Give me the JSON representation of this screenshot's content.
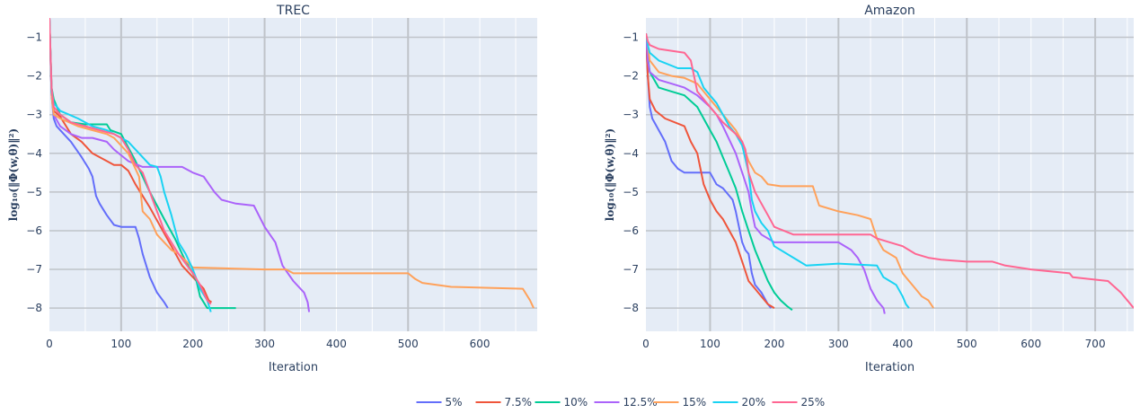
{
  "colors": {
    "plot_bg": "#e5ecf6",
    "grid": "#ffffff",
    "series": {
      "5%": "#636efa",
      "7.5%": "#ef553b",
      "10%": "#00cc96",
      "12.5%": "#ab63fa",
      "15%": "#ffa15a",
      "20%": "#19d3f3",
      "25%": "#ff6692"
    }
  },
  "legend": {
    "placement": "bottom-center",
    "entries": [
      "5%",
      "7.5%",
      "10%",
      "12.5%",
      "15%",
      "20%",
      "25%"
    ]
  },
  "chart_data": [
    {
      "type": "line",
      "title": "TREC",
      "xlabel": "Iteration",
      "ylabel": "log₁₀(‖Φ(w,θ)‖²)",
      "xlim": [
        0,
        680
      ],
      "ylim": [
        -8.6,
        -0.5
      ],
      "xticks": [
        0,
        100,
        200,
        300,
        400,
        500,
        600
      ],
      "yticks": [
        -1,
        -2,
        -3,
        -4,
        -5,
        -6,
        -7,
        -8
      ],
      "grid": true,
      "series": [
        {
          "name": "5%",
          "x": [
            0,
            3,
            6,
            10,
            20,
            30,
            45,
            55,
            60,
            65,
            70,
            80,
            90,
            100,
            120,
            125,
            130,
            140,
            150,
            160,
            165
          ],
          "y": [
            -0.5,
            -2.5,
            -3.1,
            -3.3,
            -3.5,
            -3.7,
            -4.1,
            -4.4,
            -4.6,
            -5.1,
            -5.3,
            -5.6,
            -5.85,
            -5.9,
            -5.9,
            -6.2,
            -6.6,
            -7.2,
            -7.6,
            -7.85,
            -8.0
          ]
        },
        {
          "name": "7.5%",
          "x": [
            0,
            3,
            6,
            15,
            30,
            45,
            60,
            80,
            90,
            100,
            110,
            120,
            130,
            140,
            155,
            170,
            185,
            200,
            215,
            222,
            226
          ],
          "y": [
            -0.5,
            -2.3,
            -2.9,
            -3.05,
            -3.5,
            -3.7,
            -4.0,
            -4.2,
            -4.3,
            -4.3,
            -4.45,
            -4.8,
            -5.1,
            -5.4,
            -5.9,
            -6.4,
            -6.9,
            -7.2,
            -7.5,
            -7.8,
            -7.85
          ]
        },
        {
          "name": "10%",
          "x": [
            0,
            3,
            6,
            15,
            30,
            50,
            60,
            80,
            85,
            100,
            120,
            140,
            160,
            175,
            190,
            200,
            205,
            210,
            220,
            260
          ],
          "y": [
            -0.5,
            -2.3,
            -2.6,
            -3.0,
            -3.2,
            -3.25,
            -3.25,
            -3.25,
            -3.4,
            -3.5,
            -4.2,
            -5.0,
            -5.7,
            -6.2,
            -6.8,
            -7.1,
            -7.3,
            -7.7,
            -8.0,
            -8.0
          ]
        },
        {
          "name": "12.5%",
          "x": [
            0,
            3,
            6,
            15,
            30,
            45,
            60,
            80,
            90,
            110,
            130,
            150,
            185,
            200,
            215,
            230,
            240,
            260,
            285,
            300,
            315,
            325,
            340,
            355,
            360,
            362
          ],
          "y": [
            -0.5,
            -2.5,
            -3.0,
            -3.3,
            -3.5,
            -3.6,
            -3.6,
            -3.7,
            -3.9,
            -4.2,
            -4.35,
            -4.35,
            -4.35,
            -4.5,
            -4.6,
            -5.0,
            -5.2,
            -5.3,
            -5.35,
            -5.9,
            -6.3,
            -6.9,
            -7.3,
            -7.6,
            -7.85,
            -8.1
          ]
        },
        {
          "name": "15%",
          "x": [
            0,
            3,
            6,
            15,
            40,
            60,
            80,
            90,
            110,
            125,
            130,
            140,
            150,
            160,
            170,
            180,
            200,
            300,
            330,
            340,
            500,
            510,
            520,
            560,
            660,
            670,
            675
          ],
          "y": [
            -0.5,
            -2.5,
            -3.0,
            -3.1,
            -3.3,
            -3.4,
            -3.5,
            -3.6,
            -4.0,
            -4.6,
            -5.5,
            -5.7,
            -6.1,
            -6.3,
            -6.5,
            -6.6,
            -6.95,
            -7.0,
            -7.0,
            -7.1,
            -7.1,
            -7.25,
            -7.35,
            -7.45,
            -7.5,
            -7.8,
            -8.0
          ]
        },
        {
          "name": "20%",
          "x": [
            0,
            3,
            6,
            15,
            40,
            60,
            80,
            90,
            110,
            125,
            140,
            150,
            155,
            160,
            170,
            180,
            190,
            200,
            210,
            220,
            225
          ],
          "y": [
            -0.5,
            -2.4,
            -2.7,
            -2.9,
            -3.1,
            -3.3,
            -3.4,
            -3.5,
            -3.7,
            -4.0,
            -4.3,
            -4.35,
            -4.6,
            -5.0,
            -5.6,
            -6.3,
            -6.6,
            -7.0,
            -7.5,
            -7.8,
            -8.1
          ]
        },
        {
          "name": "25%",
          "x": [
            0,
            3,
            6,
            15,
            30,
            50,
            70,
            90,
            100,
            110,
            120,
            130,
            140,
            160,
            180,
            200,
            210,
            220,
            225
          ],
          "y": [
            -0.5,
            -2.3,
            -2.8,
            -3.0,
            -3.2,
            -3.3,
            -3.4,
            -3.5,
            -3.6,
            -3.9,
            -4.3,
            -4.5,
            -5.0,
            -6.0,
            -6.6,
            -7.1,
            -7.4,
            -7.8,
            -7.9
          ]
        }
      ]
    },
    {
      "type": "line",
      "title": "Amazon",
      "xlabel": "Iteration",
      "ylabel": "log₁₀(‖Φ(w,θ)‖²)",
      "xlim": [
        0,
        760
      ],
      "ylim": [
        -8.6,
        -0.5
      ],
      "xticks": [
        0,
        100,
        200,
        300,
        400,
        500,
        600,
        700
      ],
      "yticks": [
        -1,
        -2,
        -3,
        -4,
        -5,
        -6,
        -7,
        -8
      ],
      "grid": true,
      "series": [
        {
          "name": "5%",
          "x": [
            0,
            3,
            6,
            10,
            20,
            30,
            40,
            50,
            60,
            70,
            100,
            110,
            120,
            135,
            140,
            145,
            150,
            155,
            160,
            165,
            170,
            180,
            190,
            195
          ],
          "y": [
            -0.9,
            -2.0,
            -2.8,
            -3.1,
            -3.4,
            -3.7,
            -4.2,
            -4.4,
            -4.5,
            -4.5,
            -4.5,
            -4.8,
            -4.9,
            -5.2,
            -5.5,
            -5.9,
            -6.3,
            -6.5,
            -6.6,
            -7.1,
            -7.4,
            -7.6,
            -7.9,
            -8.0
          ]
        },
        {
          "name": "7.5%",
          "x": [
            0,
            3,
            6,
            15,
            30,
            60,
            70,
            80,
            90,
            100,
            105,
            110,
            120,
            130,
            140,
            150,
            160,
            170,
            180,
            190,
            200
          ],
          "y": [
            -0.9,
            -2.0,
            -2.6,
            -2.9,
            -3.1,
            -3.3,
            -3.7,
            -4.0,
            -4.8,
            -5.2,
            -5.35,
            -5.5,
            -5.7,
            -6.0,
            -6.3,
            -6.8,
            -7.3,
            -7.5,
            -7.7,
            -7.9,
            -8.0
          ]
        },
        {
          "name": "10%",
          "x": [
            0,
            3,
            6,
            20,
            40,
            60,
            80,
            100,
            110,
            120,
            130,
            140,
            150,
            160,
            170,
            180,
            190,
            200,
            210,
            220,
            228
          ],
          "y": [
            -0.9,
            -1.5,
            -1.9,
            -2.3,
            -2.4,
            -2.5,
            -2.8,
            -3.4,
            -3.7,
            -4.1,
            -4.5,
            -4.9,
            -5.5,
            -6.0,
            -6.5,
            -6.9,
            -7.3,
            -7.6,
            -7.8,
            -7.95,
            -8.05
          ]
        },
        {
          "name": "12.5%",
          "x": [
            0,
            3,
            6,
            20,
            40,
            60,
            80,
            100,
            110,
            120,
            140,
            150,
            160,
            165,
            170,
            180,
            200,
            250,
            300,
            320,
            330,
            340,
            350,
            360,
            370,
            372
          ],
          "y": [
            -0.9,
            -1.6,
            -1.9,
            -2.1,
            -2.2,
            -2.3,
            -2.5,
            -2.8,
            -3.0,
            -3.3,
            -4.0,
            -4.5,
            -5.0,
            -5.5,
            -5.9,
            -6.1,
            -6.3,
            -6.3,
            -6.3,
            -6.5,
            -6.7,
            -7.0,
            -7.5,
            -7.8,
            -8.0,
            -8.15
          ]
        },
        {
          "name": "15%",
          "x": [
            0,
            3,
            6,
            20,
            40,
            60,
            80,
            100,
            120,
            140,
            150,
            160,
            170,
            180,
            190,
            210,
            260,
            270,
            300,
            330,
            350,
            360,
            370,
            390,
            400,
            410,
            420,
            430,
            440,
            448
          ],
          "y": [
            -0.9,
            -1.2,
            -1.6,
            -1.9,
            -2.0,
            -2.05,
            -2.2,
            -2.6,
            -3.0,
            -3.4,
            -3.7,
            -4.2,
            -4.5,
            -4.6,
            -4.8,
            -4.85,
            -4.85,
            -5.35,
            -5.5,
            -5.6,
            -5.7,
            -6.2,
            -6.5,
            -6.7,
            -7.1,
            -7.3,
            -7.5,
            -7.7,
            -7.8,
            -8.0
          ]
        },
        {
          "name": "20%",
          "x": [
            0,
            3,
            6,
            20,
            50,
            70,
            80,
            90,
            100,
            110,
            120,
            130,
            140,
            150,
            160,
            165,
            170,
            180,
            190,
            200,
            250,
            300,
            360,
            370,
            380,
            390,
            400,
            405,
            410
          ],
          "y": [
            -0.9,
            -1.2,
            -1.4,
            -1.6,
            -1.8,
            -1.8,
            -1.9,
            -2.3,
            -2.5,
            -2.7,
            -3.0,
            -3.3,
            -3.5,
            -3.8,
            -4.5,
            -5.2,
            -5.5,
            -5.8,
            -6.0,
            -6.4,
            -6.9,
            -6.85,
            -6.9,
            -7.2,
            -7.3,
            -7.4,
            -7.7,
            -7.9,
            -8.0
          ]
        },
        {
          "name": "25%",
          "x": [
            0,
            3,
            6,
            20,
            60,
            70,
            80,
            100,
            120,
            140,
            150,
            155,
            160,
            170,
            180,
            190,
            200,
            230,
            300,
            350,
            360,
            380,
            400,
            410,
            420,
            440,
            460,
            500,
            540,
            560,
            600,
            660,
            665,
            720,
            740,
            760
          ],
          "y": [
            -0.9,
            -1.1,
            -1.2,
            -1.3,
            -1.4,
            -1.6,
            -2.4,
            -2.8,
            -3.2,
            -3.5,
            -3.7,
            -3.9,
            -4.5,
            -5.0,
            -5.3,
            -5.6,
            -5.9,
            -6.1,
            -6.1,
            -6.1,
            -6.2,
            -6.3,
            -6.4,
            -6.5,
            -6.6,
            -6.7,
            -6.75,
            -6.8,
            -6.8,
            -6.9,
            -7.0,
            -7.1,
            -7.2,
            -7.3,
            -7.6,
            -8.0
          ]
        }
      ]
    }
  ]
}
